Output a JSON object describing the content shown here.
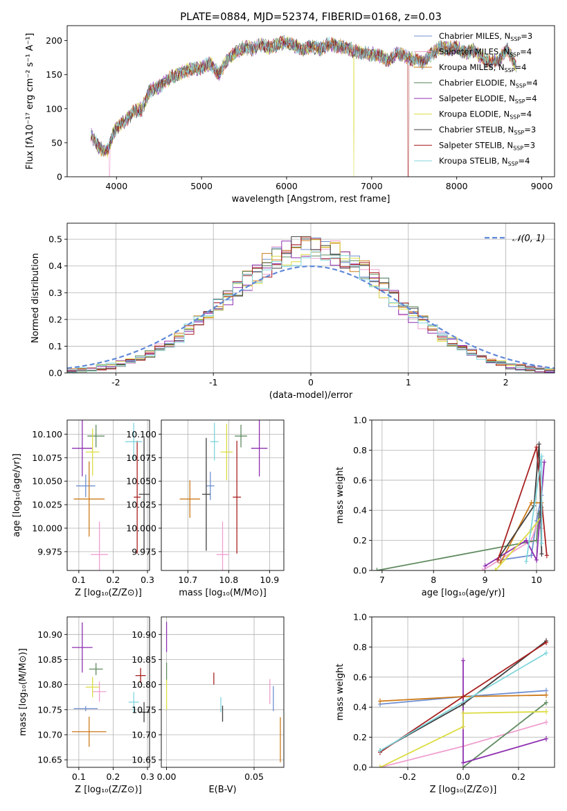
{
  "colors": [
    "#6f8fd1",
    "#ef9fcf",
    "#cc7a1a",
    "#5f8a5f",
    "#8e2fb0",
    "#dcdc42",
    "#404040",
    "#a82020",
    "#7fd6dc"
  ],
  "chart_data": [
    {
      "id": "spectrum",
      "type": "line",
      "title": "PLATE=0884, MJD=52374, FIBERID=0168, z=0.03",
      "xlabel": "wavelength [Angstrom, rest frame]",
      "ylabel": "Flux [fλ10⁻¹⁷ erg cm⁻² s⁻¹ A⁻¹]",
      "xlim": [
        3420,
        9150
      ],
      "ylim": [
        0,
        222
      ],
      "xticks": [
        4000,
        5000,
        6000,
        7000,
        8000,
        9000
      ],
      "yticks": [
        0,
        50,
        100,
        150,
        200
      ],
      "continuum": [
        [
          3700,
          62
        ],
        [
          3800,
          42
        ],
        [
          3900,
          38
        ],
        [
          3950,
          60
        ],
        [
          4000,
          72
        ],
        [
          4100,
          82
        ],
        [
          4200,
          95
        ],
        [
          4300,
          100
        ],
        [
          4400,
          128
        ],
        [
          4500,
          132
        ],
        [
          4600,
          142
        ],
        [
          4700,
          150
        ],
        [
          4800,
          155
        ],
        [
          4900,
          158
        ],
        [
          5000,
          160
        ],
        [
          5100,
          167
        ],
        [
          5200,
          150
        ],
        [
          5300,
          172
        ],
        [
          5400,
          182
        ],
        [
          5500,
          190
        ],
        [
          5600,
          188
        ],
        [
          5700,
          193
        ],
        [
          5800,
          190
        ],
        [
          5900,
          195
        ],
        [
          6000,
          198
        ],
        [
          6100,
          192
        ],
        [
          6200,
          186
        ],
        [
          6300,
          192
        ],
        [
          6400,
          188
        ],
        [
          6500,
          195
        ],
        [
          6600,
          192
        ],
        [
          6700,
          190
        ],
        [
          6800,
          184
        ],
        [
          6900,
          182
        ],
        [
          7000,
          180
        ],
        [
          7100,
          178
        ],
        [
          7200,
          170
        ],
        [
          7300,
          182
        ],
        [
          7400,
          176
        ],
        [
          7500,
          172
        ],
        [
          7600,
          168
        ],
        [
          7700,
          180
        ],
        [
          7800,
          190
        ],
        [
          7900,
          188
        ],
        [
          8000,
          190
        ],
        [
          8100,
          182
        ],
        [
          8200,
          186
        ],
        [
          8300,
          174
        ],
        [
          8400,
          168
        ],
        [
          8500,
          172
        ],
        [
          8600,
          188
        ],
        [
          8700,
          160
        ]
      ],
      "drops": [
        [
          3920,
          1
        ],
        [
          6790,
          5
        ],
        [
          7430,
          7
        ]
      ],
      "legend_position": "upper right",
      "series": [
        {
          "name": "Chabrier MILES, N",
          "sub": "SSP",
          "suffix": "=3"
        },
        {
          "name": "Salpeter MILES, N",
          "sub": "SSP",
          "suffix": "=4"
        },
        {
          "name": "Kroupa MILES, N",
          "sub": "SSP",
          "suffix": "=4"
        },
        {
          "name": "Chabrier ELODIE, N",
          "sub": "SSP",
          "suffix": "=4"
        },
        {
          "name": "Salpeter ELODIE, N",
          "sub": "SSP",
          "suffix": "=4"
        },
        {
          "name": "Kroupa ELODIE, N",
          "sub": "SSP",
          "suffix": "=4"
        },
        {
          "name": "Chabrier STELIB, N",
          "sub": "SSP",
          "suffix": "=3"
        },
        {
          "name": "Salpeter STELIB, N",
          "sub": "SSP",
          "suffix": "=3"
        },
        {
          "name": "Kroupa STELIB, N",
          "sub": "SSP",
          "suffix": "=4"
        }
      ]
    },
    {
      "id": "residuals",
      "type": "line",
      "xlabel": "(data-model)/error",
      "ylabel": "Normed distribution",
      "xlim": [
        -2.5,
        2.5
      ],
      "ylim": [
        0,
        0.56
      ],
      "xticks": [
        -2,
        -1,
        0,
        1,
        2
      ],
      "yticks": [
        0.0,
        0.1,
        0.2,
        0.3,
        0.4,
        0.5
      ],
      "legend_position": "upper right",
      "series": [
        {
          "name": "𝒩(0, 1)"
        }
      ]
    },
    {
      "id": "age-vs-Z",
      "type": "scatter",
      "xlabel": "Z [log₁₀(Z/Z⊙)]",
      "ylabel": "age  [log₁₀(age/yr)]",
      "xlim": [
        0.066,
        0.306
      ],
      "ylim": [
        9.955,
        10.115
      ],
      "xticks": [
        0.1,
        0.2,
        0.3
      ],
      "yticks": [
        9.975,
        10.0,
        10.025,
        10.05,
        10.075,
        10.1
      ],
      "points": [
        {
          "x": 0.12,
          "y": 10.045,
          "xerr": 0.028,
          "yerr": 0.012
        },
        {
          "x": 0.16,
          "y": 9.972,
          "xerr": 0.025,
          "yerr": 0.035
        },
        {
          "x": 0.13,
          "y": 10.031,
          "xerr": 0.045,
          "yerr": 0.04
        },
        {
          "x": 0.15,
          "y": 10.098,
          "xerr": 0.025,
          "yerr": 0.012
        },
        {
          "x": 0.11,
          "y": 10.085,
          "xerr": 0.03,
          "yerr": 0.03
        },
        {
          "x": 0.14,
          "y": 10.081,
          "xerr": 0.02,
          "yerr": 0.025
        },
        {
          "x": 0.29,
          "y": 10.036,
          "xerr": 0.015,
          "yerr": 0.06
        },
        {
          "x": 0.27,
          "y": 10.033,
          "xerr": 0.01,
          "yerr": 0.06
        },
        {
          "x": 0.26,
          "y": 10.092,
          "xerr": 0.025,
          "yerr": 0.02
        }
      ]
    },
    {
      "id": "age-vs-mass",
      "type": "scatter",
      "xlabel": "mass [log₁₀(M/M⊙)]",
      "ylabel": "",
      "xlim": [
        10.635,
        10.935
      ],
      "ylim": [
        9.955,
        10.115
      ],
      "xticks": [
        10.7,
        10.8,
        10.9
      ],
      "yticks": [
        9.975,
        10.0,
        10.025,
        10.05,
        10.075,
        10.1
      ],
      "points": [
        {
          "x": 10.755,
          "y": 10.045,
          "xerr": 0.01,
          "yerr": 0.015
        },
        {
          "x": 10.785,
          "y": 9.972,
          "xerr": 0.015,
          "yerr": 0.035
        },
        {
          "x": 10.705,
          "y": 10.031,
          "xerr": 0.025,
          "yerr": 0.02
        },
        {
          "x": 10.83,
          "y": 10.098,
          "xerr": 0.015,
          "yerr": 0.012
        },
        {
          "x": 10.875,
          "y": 10.085,
          "xerr": 0.02,
          "yerr": 0.03
        },
        {
          "x": 10.795,
          "y": 10.081,
          "xerr": 0.015,
          "yerr": 0.03
        },
        {
          "x": 10.745,
          "y": 10.036,
          "xerr": 0.01,
          "yerr": 0.06
        },
        {
          "x": 10.82,
          "y": 10.033,
          "xerr": 0.01,
          "yerr": 0.06
        },
        {
          "x": 10.765,
          "y": 10.092,
          "xerr": 0.01,
          "yerr": 0.02
        }
      ]
    },
    {
      "id": "massweight-vs-age",
      "type": "line",
      "xlabel": "age  [log₁₀(age/yr)]",
      "ylabel": "mass weight",
      "xlim": [
        6.8,
        10.35
      ],
      "ylim": [
        0,
        1.0
      ],
      "xticks": [
        7,
        8,
        9,
        10
      ],
      "yticks": [
        0.0,
        0.2,
        0.4,
        0.6,
        0.8,
        1.0
      ],
      "series": [
        {
          "name": "",
          "points": [
            [
              9.3,
              0.07
            ],
            [
              9.9,
              0.1
            ],
            [
              10.0,
              0.33
            ],
            [
              10.1,
              0.5
            ]
          ]
        },
        {
          "name": "",
          "points": [
            [
              8.95,
              0.0
            ],
            [
              9.9,
              0.2
            ],
            [
              10.0,
              0.3
            ],
            [
              10.1,
              0.28
            ]
          ]
        },
        {
          "name": "",
          "points": [
            [
              9.3,
              0.05
            ],
            [
              9.9,
              0.45
            ],
            [
              10.1,
              0.45
            ]
          ]
        },
        {
          "name": "",
          "points": [
            [
              6.9,
              0.0
            ],
            [
              10.0,
              0.2
            ],
            [
              10.05,
              0.38
            ],
            [
              10.1,
              0.42
            ]
          ]
        },
        {
          "name": "",
          "points": [
            [
              9.0,
              0.03
            ],
            [
              9.8,
              0.2
            ],
            [
              10.0,
              0.07
            ],
            [
              10.15,
              0.72
            ]
          ]
        },
        {
          "name": "",
          "points": [
            [
              9.2,
              0.0
            ],
            [
              9.9,
              0.27
            ],
            [
              10.1,
              0.36
            ]
          ]
        },
        {
          "name": "",
          "points": [
            [
              9.3,
              0.1
            ],
            [
              9.95,
              0.43
            ],
            [
              10.05,
              0.84
            ],
            [
              10.1,
              0.11
            ]
          ]
        },
        {
          "name": "",
          "points": [
            [
              9.25,
              0.07
            ],
            [
              10.0,
              0.82
            ],
            [
              10.2,
              0.1
            ]
          ]
        },
        {
          "name": "",
          "points": [
            [
              9.8,
              0.06
            ],
            [
              10.1,
              0.76
            ],
            [
              10.1,
              0.18
            ]
          ]
        }
      ]
    },
    {
      "id": "mass-vs-Z",
      "type": "scatter",
      "xlabel": "Z [log₁₀(Z/Z⊙)]",
      "ylabel": "mass [log₁₀(M/M⊙)]",
      "xlim": [
        0.066,
        0.306
      ],
      "ylim": [
        10.635,
        10.935
      ],
      "xticks": [
        0.1,
        0.2,
        0.3
      ],
      "yticks": [
        10.65,
        10.7,
        10.75,
        10.8,
        10.85,
        10.9
      ],
      "points": [
        {
          "x": 0.12,
          "y": 10.752,
          "xerr": 0.035,
          "yerr": 0.005
        },
        {
          "x": 0.16,
          "y": 10.786,
          "xerr": 0.02,
          "yerr": 0.02
        },
        {
          "x": 0.13,
          "y": 10.706,
          "xerr": 0.05,
          "yerr": 0.03
        },
        {
          "x": 0.15,
          "y": 10.831,
          "xerr": 0.02,
          "yerr": 0.012
        },
        {
          "x": 0.11,
          "y": 10.874,
          "xerr": 0.03,
          "yerr": 0.05
        },
        {
          "x": 0.14,
          "y": 10.795,
          "xerr": 0.02,
          "yerr": 0.02
        },
        {
          "x": 0.29,
          "y": 10.745,
          "xerr": 0.015,
          "yerr": 0.02
        },
        {
          "x": 0.28,
          "y": 10.818,
          "xerr": 0.015,
          "yerr": 0.015
        },
        {
          "x": 0.26,
          "y": 10.765,
          "xerr": 0.015,
          "yerr": 0.02
        }
      ]
    },
    {
      "id": "mass-vs-ebv",
      "type": "scatter",
      "xlabel": "E(B-V)",
      "ylabel": "",
      "xlim": [
        -0.003,
        0.067
      ],
      "ylim": [
        10.635,
        10.935
      ],
      "xticks": [
        0.0,
        0.05
      ],
      "xtick_labels": [
        "0.00",
        "0.05"
      ],
      "yticks": [
        10.65,
        10.7,
        10.75,
        10.8,
        10.85,
        10.9
      ],
      "points": [
        {
          "x": 0.061,
          "y": 10.772,
          "xerr": 0,
          "yerr": 0.025
        },
        {
          "x": 0.059,
          "y": 10.786,
          "xerr": 0,
          "yerr": 0.025
        },
        {
          "x": 0.065,
          "y": 10.69,
          "xerr": 0,
          "yerr": 0.045
        },
        {
          "x": 0.0,
          "y": 10.826,
          "xerr": 0,
          "yerr": 0.018
        },
        {
          "x": 0.0,
          "y": 10.895,
          "xerr": 0,
          "yerr": 0.03
        },
        {
          "x": 0.0,
          "y": 10.78,
          "xerr": 0,
          "yerr": 0.03
        },
        {
          "x": 0.032,
          "y": 10.742,
          "xerr": 0,
          "yerr": 0.016
        },
        {
          "x": 0.027,
          "y": 10.812,
          "xerr": 0,
          "yerr": 0.012
        },
        {
          "x": 0.031,
          "y": 10.76,
          "xerr": 0,
          "yerr": 0.015
        }
      ]
    },
    {
      "id": "massweight-vs-Z",
      "type": "line",
      "xlabel": "Z [log₁₀(Z/Z⊙)]",
      "ylabel": "mass weight",
      "xlim": [
        -0.33,
        0.33
      ],
      "ylim": [
        0,
        1.0
      ],
      "xticks": [
        -0.2,
        0.0,
        0.2
      ],
      "yticks": [
        0.0,
        0.2,
        0.4,
        0.6,
        0.8,
        1.0
      ],
      "series": [
        {
          "name": "",
          "points": [
            [
              -0.3,
              0.42
            ],
            [
              0.0,
              0.47
            ],
            [
              0.3,
              0.51
            ]
          ]
        },
        {
          "name": "",
          "points": [
            [
              -0.3,
              0.0
            ],
            [
              0.0,
              0.14
            ],
            [
              0.3,
              0.3
            ]
          ]
        },
        {
          "name": "",
          "points": [
            [
              -0.3,
              0.44
            ],
            [
              0.0,
              0.47
            ],
            [
              0.3,
              0.48
            ]
          ]
        },
        {
          "name": "",
          "points": [
            [
              0.0,
              0.0
            ],
            [
              0.3,
              0.43
            ]
          ]
        },
        {
          "name": "",
          "points": [
            [
              0.0,
              0.71
            ],
            [
              0.0,
              0.03
            ],
            [
              0.3,
              0.19
            ]
          ]
        },
        {
          "name": "",
          "points": [
            [
              -0.3,
              0.0
            ],
            [
              0.0,
              0.27
            ],
            [
              0.0,
              0.36
            ],
            [
              0.3,
              0.37
            ]
          ]
        },
        {
          "name": "",
          "points": [
            [
              -0.3,
              0.11
            ],
            [
              0.0,
              0.42
            ],
            [
              0.3,
              0.84
            ]
          ]
        },
        {
          "name": "",
          "points": [
            [
              -0.3,
              0.1
            ],
            [
              0.0,
              0.47
            ],
            [
              0.3,
              0.83
            ]
          ]
        },
        {
          "name": "",
          "points": [
            [
              -0.3,
              0.11
            ],
            [
              0.3,
              0.76
            ]
          ]
        }
      ]
    }
  ]
}
